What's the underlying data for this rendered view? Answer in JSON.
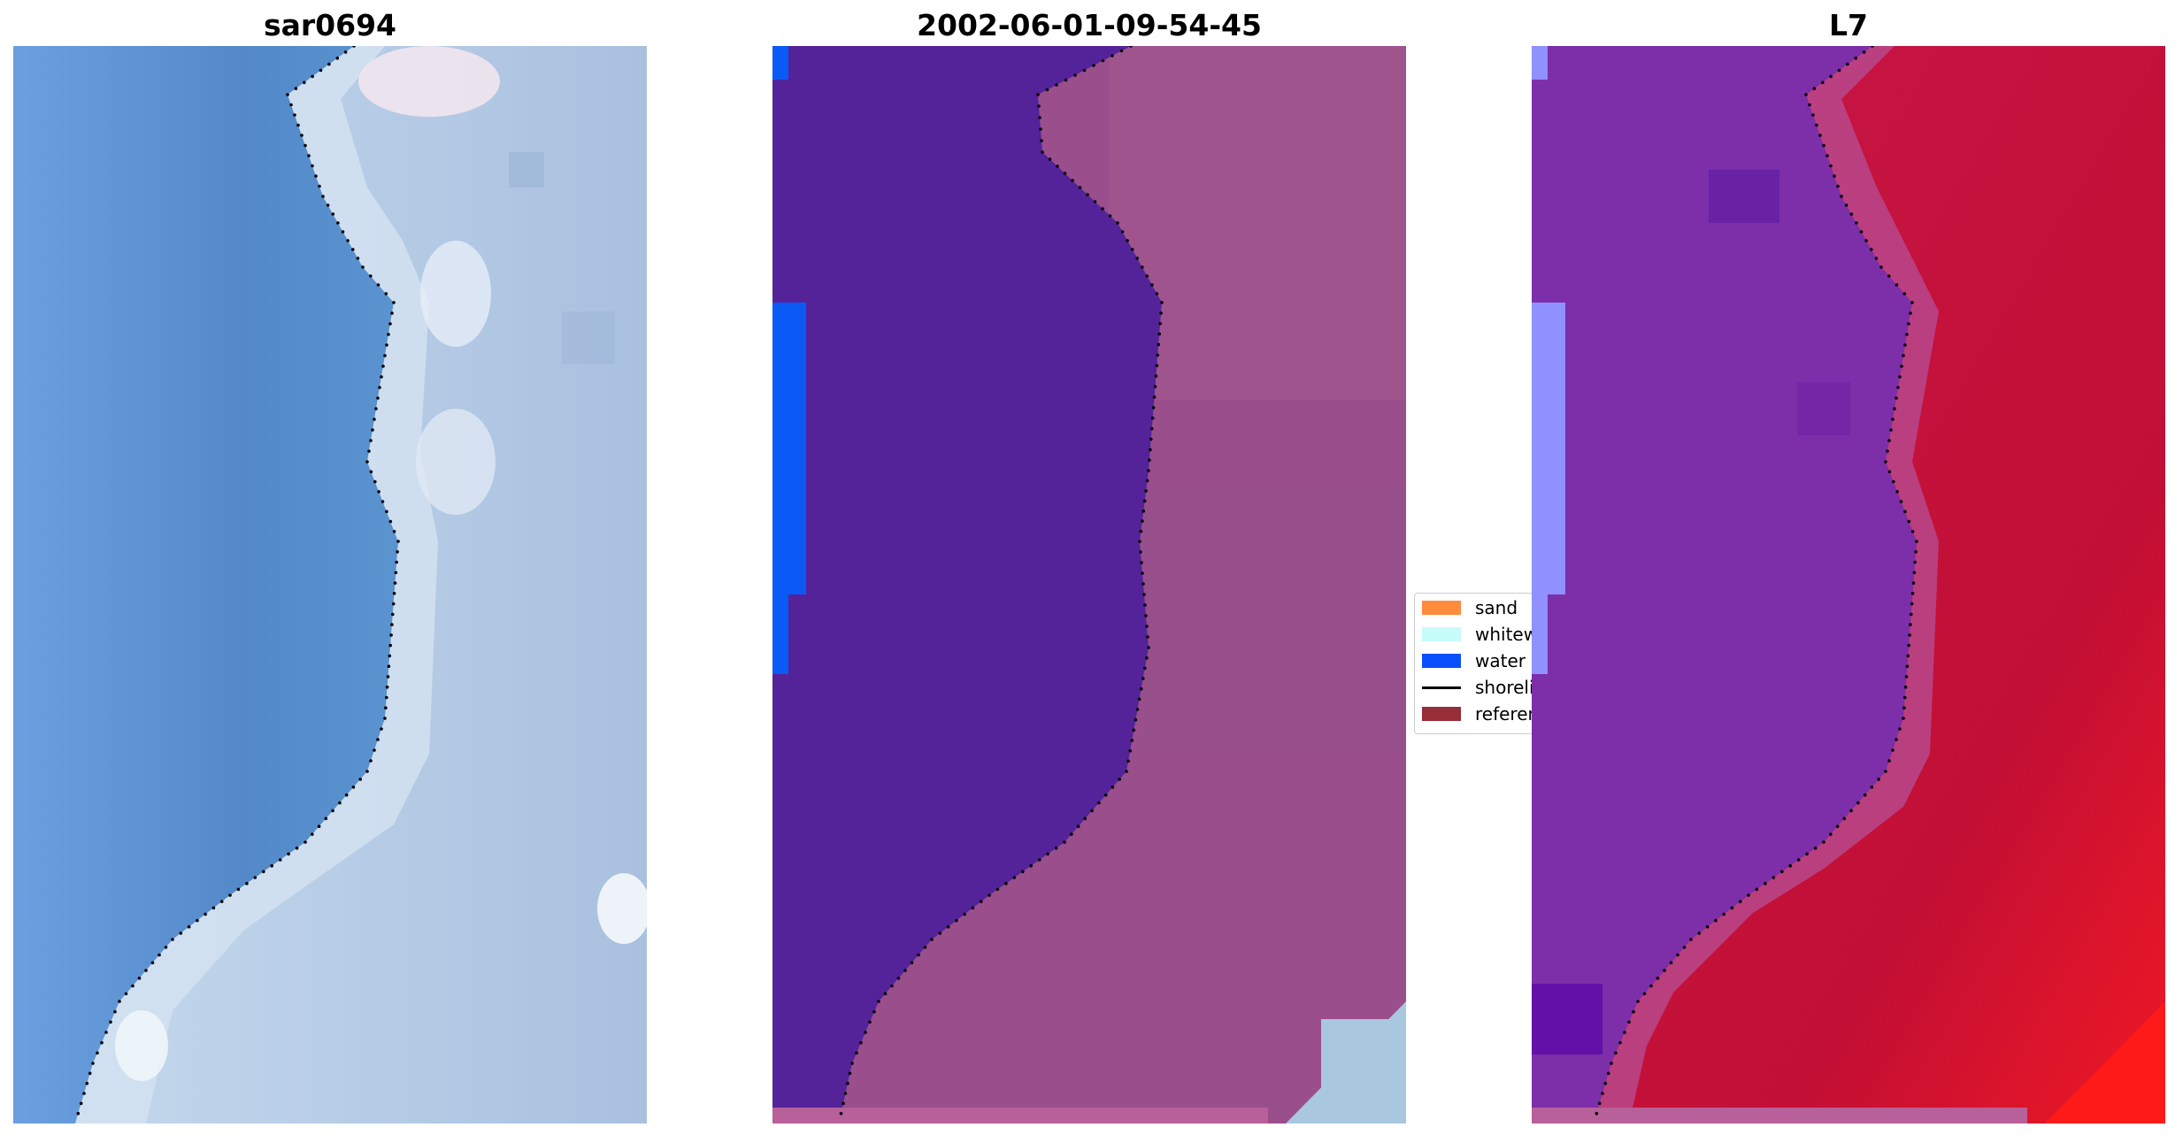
{
  "panels": [
    {
      "title": "sar0694"
    },
    {
      "title": "2002-06-01-09-54-45"
    },
    {
      "title": "L7"
    }
  ],
  "legend": {
    "items": [
      {
        "label": "sand",
        "color": "#ff8c3c"
      },
      {
        "label": "whitewater",
        "color": "#c8fcfa"
      },
      {
        "label": "water",
        "color": "#0a50fa"
      },
      {
        "label": "shoreline",
        "color": "#000000"
      },
      {
        "label": "reference",
        "color": "#962d37"
      }
    ]
  },
  "colors": {
    "ocean_rgb": "#5a8fd0",
    "beach_rgb": "#b9cde6",
    "water_class": "#54239a",
    "land_class": "#9a4e8c",
    "water_index": "#7d2ea9",
    "land_index": "#c4123a"
  }
}
